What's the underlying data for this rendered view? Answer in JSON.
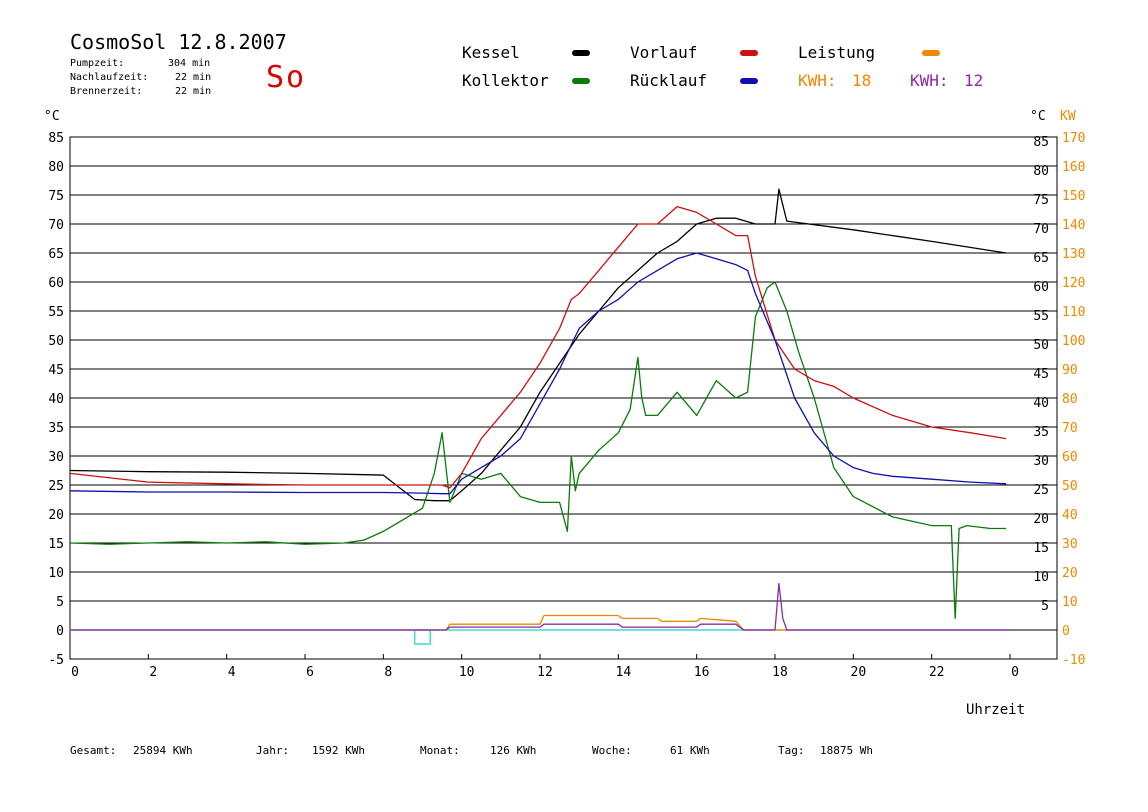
{
  "header": {
    "title": "CosmoSol 12.8.2007",
    "day": "So",
    "stats": [
      {
        "label": "Pumpzeit:",
        "value": "304 min"
      },
      {
        "label": "Nachlaufzeit:",
        "value": "22 min"
      },
      {
        "label": "Brennerzeit:",
        "value": "22 min"
      }
    ]
  },
  "legend": {
    "kessel": "Kessel",
    "kollektor": "Kollektor",
    "vorlauf": "Vorlauf",
    "ruecklauf": "Rücklauf",
    "leistung": "Leistung",
    "kwh1_label": "KWH:",
    "kwh1_value": "18",
    "kwh2_label": "KWH:",
    "kwh2_value": "12"
  },
  "axes": {
    "left_unit": "°C",
    "right_unit_c": "°C",
    "right_unit_kw": "KW",
    "x_title": "Uhrzeit"
  },
  "footer": [
    {
      "label": "Gesamt:",
      "value": "25894 KWh"
    },
    {
      "label": "Jahr:",
      "value": "1592 KWh"
    },
    {
      "label": "Monat:",
      "value": "126 KWh"
    },
    {
      "label": "Woche:",
      "value": "61 KWh"
    },
    {
      "label": "Tag:",
      "value": "18875 Wh"
    }
  ],
  "colors": {
    "kessel": "#000000",
    "kollektor": "#0a7a0a",
    "vorlauf": "#cc1111",
    "ruecklauf": "#1010b0",
    "leistung": "#ee8800",
    "kwh2": "#8a2aa8",
    "baseline": "#40d8d8",
    "so": "#dd0000"
  },
  "chart_data": {
    "type": "line",
    "xlim": [
      0,
      24
    ],
    "ylim": [
      -5,
      85
    ],
    "y2lim": [
      -10,
      170
    ],
    "x_ticks": [
      "0",
      "2",
      "4",
      "6",
      "8",
      "10",
      "12",
      "14",
      "16",
      "18",
      "20",
      "22",
      "0"
    ],
    "y_ticks_left": [
      "85",
      "80",
      "75",
      "70",
      "65",
      "60",
      "55",
      "50",
      "45",
      "40",
      "35",
      "30",
      "25",
      "20",
      "15",
      "10",
      "5",
      "0",
      "-5"
    ],
    "y_ticks_right_c": [
      "85",
      "80",
      "75",
      "70",
      "65",
      "60",
      "55",
      "50",
      "45",
      "40",
      "35",
      "30",
      "25",
      "20",
      "15",
      "10",
      "5"
    ],
    "y_ticks_right_kw": [
      "170",
      "160",
      "150",
      "140",
      "130",
      "120",
      "110",
      "100",
      "90",
      "80",
      "70",
      "60",
      "50",
      "40",
      "30",
      "20",
      "10",
      "0",
      "-10"
    ],
    "series": [
      {
        "name": "Kessel",
        "key": "kessel",
        "x": [
          0,
          2,
          4,
          6,
          8,
          8.8,
          9.3,
          9.7,
          10,
          10.5,
          11,
          11.5,
          12,
          12.5,
          13,
          13.5,
          14,
          14.5,
          15,
          15.5,
          16,
          16.5,
          17,
          17.5,
          18,
          18.1,
          18.3,
          20,
          22,
          23.9
        ],
        "y": [
          27.5,
          27.3,
          27.2,
          27.0,
          26.7,
          22.5,
          22.3,
          22.3,
          24,
          27,
          31,
          35,
          41,
          46,
          51,
          55,
          59,
          62,
          65,
          67,
          70,
          71,
          71,
          70,
          70,
          76,
          70.5,
          69,
          67,
          65
        ]
      },
      {
        "name": "Kollektor",
        "key": "kollektor",
        "x": [
          0,
          1,
          2,
          3,
          4,
          5,
          6,
          7,
          7.5,
          8,
          8.5,
          9,
          9.3,
          9.5,
          9.7,
          10,
          10.5,
          11,
          11.5,
          12,
          12.5,
          12.7,
          12.8,
          12.9,
          13,
          13.5,
          14,
          14.3,
          14.5,
          14.6,
          14.7,
          15,
          15.5,
          16,
          16.5,
          17,
          17.3,
          17.5,
          17.8,
          18,
          18.3,
          18.6,
          19,
          19.5,
          20,
          21,
          22,
          22.5,
          22.6,
          22.7,
          22.9,
          23.5,
          23.9
        ],
        "y": [
          15,
          14.8,
          15,
          15.2,
          15,
          15.2,
          14.8,
          15,
          15.5,
          17,
          19,
          21,
          27,
          34,
          22,
          27,
          26,
          27,
          23,
          22,
          22,
          17,
          30,
          24,
          27,
          31,
          34,
          38,
          47,
          40,
          37,
          37,
          41,
          37,
          43,
          40,
          41,
          54,
          59,
          60,
          55,
          48,
          40,
          28,
          23,
          19.5,
          18,
          18,
          2,
          17.5,
          18,
          17.5,
          17.5
        ]
      },
      {
        "name": "Vorlauf",
        "key": "vorlauf",
        "x": [
          0,
          2,
          4,
          6,
          8,
          9,
          9.5,
          9.7,
          10,
          10.5,
          11,
          11.5,
          12,
          12.5,
          12.8,
          13,
          13.5,
          14,
          14.5,
          15,
          15.5,
          16,
          16.5,
          17,
          17.3,
          17.5,
          18,
          18.5,
          19,
          19.5,
          20,
          21,
          22,
          23,
          23.9
        ],
        "y": [
          27,
          25.5,
          25.2,
          25,
          25,
          25,
          25,
          24.5,
          27,
          33,
          37,
          41,
          46,
          52,
          57,
          58,
          62,
          66,
          70,
          70,
          73,
          72,
          70,
          68,
          68,
          61,
          50,
          45,
          43,
          42,
          40,
          37,
          35,
          34,
          33
        ]
      },
      {
        "name": "Rücklauf",
        "key": "ruecklauf",
        "x": [
          0,
          2,
          4,
          6,
          8,
          9,
          9.5,
          9.7,
          10,
          10.5,
          11,
          11.5,
          12,
          12.5,
          13,
          13.5,
          14,
          14.5,
          15,
          15.5,
          16,
          16.5,
          17,
          17.3,
          17.5,
          18,
          18.5,
          19,
          19.5,
          20,
          20.5,
          21,
          22,
          23,
          23.9
        ],
        "y": [
          24,
          23.8,
          23.8,
          23.7,
          23.7,
          23.6,
          23.5,
          23.5,
          26,
          28,
          30,
          33,
          39,
          45,
          52,
          55,
          57,
          60,
          62,
          64,
          65,
          64,
          63,
          62,
          58,
          50,
          40,
          34,
          30,
          28,
          27,
          26.5,
          26,
          25.5,
          25.2
        ]
      },
      {
        "name": "Leistung",
        "key": "leistung",
        "x": [
          0,
          9.6,
          9.7,
          12,
          12.1,
          14,
          14.1,
          15,
          15.1,
          16,
          16.1,
          17,
          17.2,
          24
        ],
        "y": [
          0,
          0,
          1,
          1,
          2.5,
          2.5,
          2,
          2,
          1.5,
          1.5,
          2,
          1.5,
          0,
          0
        ]
      },
      {
        "name": "KWH 12",
        "key": "kwh2",
        "x": [
          0,
          9.6,
          9.7,
          12,
          12.1,
          14,
          14.1,
          16,
          16.1,
          17,
          17.2,
          18,
          18.1,
          18.2,
          18.3,
          24
        ],
        "y": [
          0,
          0,
          0.5,
          0.5,
          1,
          1,
          0.5,
          0.5,
          1,
          1,
          0,
          0,
          8,
          2,
          0,
          0
        ]
      }
    ]
  }
}
